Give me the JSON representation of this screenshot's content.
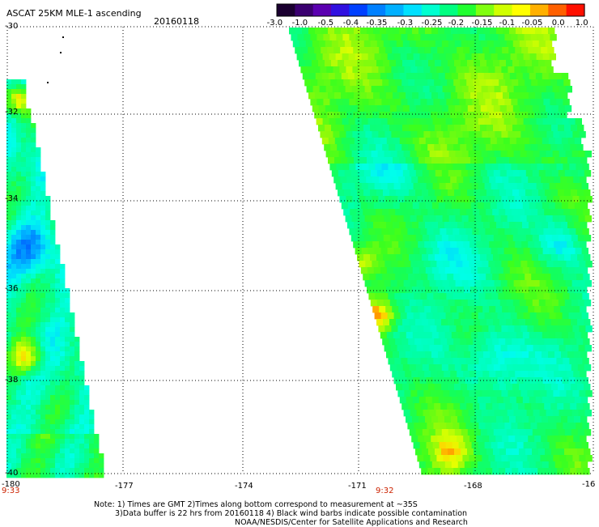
{
  "header": {
    "title": "ASCAT 25KM MLE-1 ascending",
    "date": "20160118"
  },
  "colorbar": {
    "colors": [
      "#1a0030",
      "#3a0070",
      "#5a00b0",
      "#3010e0",
      "#0040ff",
      "#0080ff",
      "#00b0ff",
      "#00e0ff",
      "#00ffd0",
      "#00ff80",
      "#20ff30",
      "#80ff10",
      "#d0ff00",
      "#ffff00",
      "#ffb000",
      "#ff6000",
      "#ff1000"
    ],
    "ticks": [
      "-3.0",
      "-1.0",
      "-0.5",
      "-0.4",
      "-0.35",
      "-0.3",
      "-0.25",
      "-0.2",
      "-0.15",
      "-0.1",
      "-0.05",
      "0.0",
      "1.0"
    ]
  },
  "axes": {
    "lat_labels": [
      "-30",
      "-32",
      "-34",
      "-36",
      "-38",
      "-40"
    ],
    "lon_labels": [
      "-180",
      "-177",
      "-174",
      "-171",
      "-168",
      "-16"
    ]
  },
  "swaths": {
    "left_time": "9:33",
    "right_time": "9:32"
  },
  "notes": {
    "line1": "Note: 1) Times are GMT 2)Times along bottom correspond to measurement at ~35S",
    "line2": "3)Data buffer is 22 hrs from 20160118 4) Black wind barbs indicate possible contamination",
    "line3": "NOAA/NESDIS/Center for Satellite Applications and Research"
  }
}
